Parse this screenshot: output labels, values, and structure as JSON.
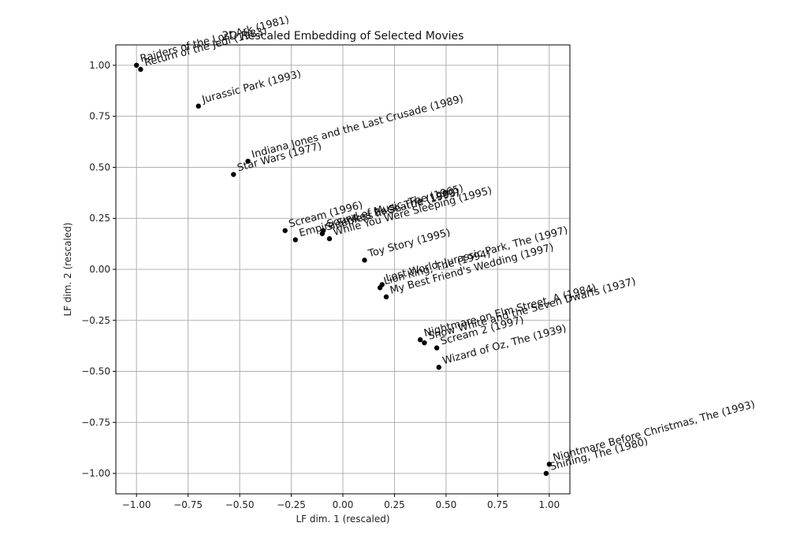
{
  "chart_data": {
    "type": "scatter",
    "title": "2D Rescaled Embedding of Selected Movies",
    "xlabel": "LF dim. 1 (rescaled)",
    "ylabel": "LF dim. 2 (rescaled)",
    "xlim": [
      -1.1,
      1.1
    ],
    "ylim": [
      -1.1,
      1.1
    ],
    "xticks": [
      -1.0,
      -0.75,
      -0.5,
      -0.25,
      0.0,
      0.25,
      0.5,
      0.75,
      1.0
    ],
    "yticks": [
      -1.0,
      -0.75,
      -0.5,
      -0.25,
      0.0,
      0.25,
      0.5,
      0.75,
      1.0
    ],
    "xtick_labels": [
      "−1.00",
      "−0.75",
      "−0.50",
      "−0.25",
      "0.00",
      "0.25",
      "0.50",
      "0.75",
      "1.00"
    ],
    "ytick_labels": [
      "−1.00",
      "−0.75",
      "−0.50",
      "−0.25",
      "0.00",
      "0.25",
      "0.50",
      "0.75",
      "1.00"
    ],
    "grid": true,
    "label_rotation_deg": 15,
    "points": [
      {
        "label": "Raiders of the Lost Ark (1981)",
        "x": -1.0,
        "y": 1.0
      },
      {
        "label": "Return of the Jedi (1983)",
        "x": -0.98,
        "y": 0.98
      },
      {
        "label": "Jurassic Park (1993)",
        "x": -0.7,
        "y": 0.8
      },
      {
        "label": "Indiana Jones and the Last Crusade (1989)",
        "x": -0.46,
        "y": 0.53
      },
      {
        "label": "Star Wars (1977)",
        "x": -0.53,
        "y": 0.465
      },
      {
        "label": "Scream (1996)",
        "x": -0.28,
        "y": 0.19
      },
      {
        "label": "Empire Strikes Back, The (1980)",
        "x": -0.23,
        "y": 0.145
      },
      {
        "label": "Sleepless in Seattle (1993)",
        "x": -0.1,
        "y": 0.175
      },
      {
        "label": "Sound of Music, The (1965)",
        "x": -0.095,
        "y": 0.19
      },
      {
        "label": "While You Were Sleeping (1995)",
        "x": -0.065,
        "y": 0.15
      },
      {
        "label": "Toy Story (1995)",
        "x": 0.105,
        "y": 0.045
      },
      {
        "label": "Lion King, The (1994)",
        "x": 0.18,
        "y": -0.09
      },
      {
        "label": "Lost World: Jurassic Park, The (1997)",
        "x": 0.19,
        "y": -0.075
      },
      {
        "label": "My Best Friend's Wedding (1997)",
        "x": 0.21,
        "y": -0.135
      },
      {
        "label": "Nightmare on Elm Street, A (1984)",
        "x": 0.375,
        "y": -0.345
      },
      {
        "label": "Snow White and the Seven Dwarfs (1937)",
        "x": 0.395,
        "y": -0.36
      },
      {
        "label": "Scream 2 (1997)",
        "x": 0.455,
        "y": -0.385
      },
      {
        "label": "Wizard of Oz, The (1939)",
        "x": 0.465,
        "y": -0.48
      },
      {
        "label": "Nightmare Before Christmas, The (1993)",
        "x": 1.0,
        "y": -0.955
      },
      {
        "label": "Shining, The (1980)",
        "x": 0.985,
        "y": -1.0
      }
    ]
  }
}
